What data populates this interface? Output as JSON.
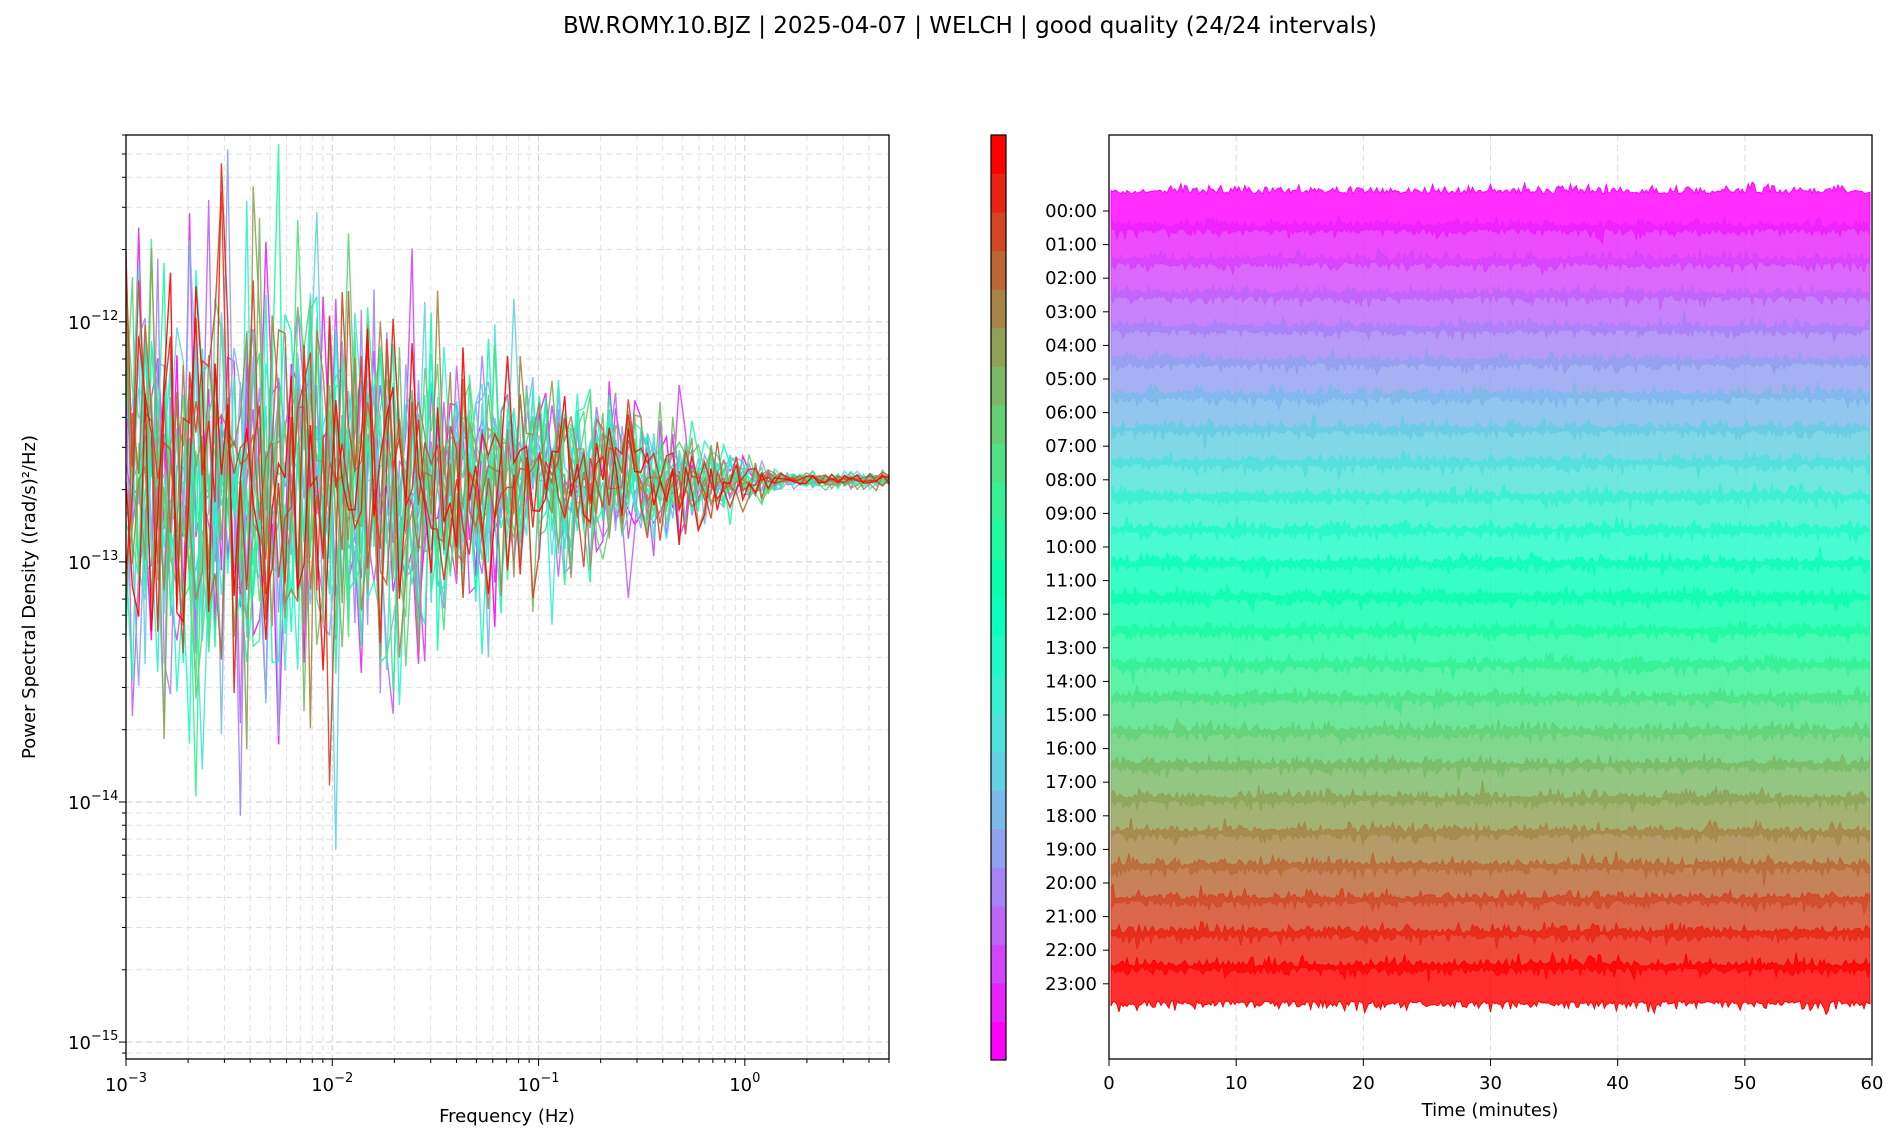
{
  "figure": {
    "suptitle": "BW.ROMY.10.BJZ | 2025-04-07 | WELCH | good quality (24/24 intervals)"
  },
  "colors": {
    "hour_colors": [
      "#8000ff",
      "#7216ff",
      "#642cfe",
      "#5641fd",
      "#4856fb",
      "#3a6bf8",
      "#2c7ef5",
      "#1e91f1",
      "#10a2ed",
      "#02b3e8",
      "#0cc2e3",
      "#1ad0dd",
      "#28dcd7",
      "#36e6d0",
      "#44eec9",
      "#52f5c2",
      "#60fabb",
      "#6efdb3",
      "#7cffab",
      "#8afea3",
      "#98fd9a",
      "#a6fa91",
      "#b4f588",
      "#c2ee7f"
    ],
    "psd_palette_note": "rainbow colormap from violet (00:00) to red (23:00)"
  },
  "chart_data": [
    {
      "type": "line",
      "name": "psd",
      "xlabel": "Frequency (Hz)",
      "ylabel": "Power Spectral Density ((rad/s)²/Hz)",
      "xscale": "log",
      "yscale": "log",
      "xlim": [
        0.001,
        5
      ],
      "ylim": [
        8.5e-16,
        6e-12
      ],
      "grid": true,
      "x_ticks": [
        {
          "value": 0.001,
          "base": "10",
          "exp": "−3"
        },
        {
          "value": 0.01,
          "base": "10",
          "exp": "−2"
        },
        {
          "value": 0.1,
          "base": "10",
          "exp": "−1"
        },
        {
          "value": 1,
          "base": "10",
          "exp": "0"
        }
      ],
      "y_ticks": [
        {
          "value": 1e-15,
          "base": "10",
          "exp": "−15"
        },
        {
          "value": 1e-14,
          "base": "10",
          "exp": "−14"
        },
        {
          "value": 1e-13,
          "base": "10",
          "exp": "−13"
        },
        {
          "value": 1e-12,
          "base": "10",
          "exp": "−12"
        }
      ],
      "series_count": 24,
      "convergence_level": 2.2e-13,
      "series_scatter_note": "24 hourly Welch PSD curves; high scatter below 0.02 Hz, converging to ~2.2e-13 above 1 Hz"
    },
    {
      "type": "area",
      "name": "waveforms",
      "xlabel": "Time (minutes)",
      "xlim": [
        0,
        60
      ],
      "x_ticks": [
        "0",
        "10",
        "20",
        "30",
        "40",
        "50",
        "60"
      ],
      "grid": true,
      "hours": [
        "00:00",
        "01:00",
        "02:00",
        "03:00",
        "04:00",
        "05:00",
        "06:00",
        "07:00",
        "08:00",
        "09:00",
        "10:00",
        "11:00",
        "12:00",
        "13:00",
        "14:00",
        "15:00",
        "16:00",
        "17:00",
        "18:00",
        "19:00",
        "20:00",
        "21:00",
        "22:00",
        "23:00"
      ],
      "colorbar": "rainbow, 24 hourly intervals, no tick labels"
    }
  ]
}
